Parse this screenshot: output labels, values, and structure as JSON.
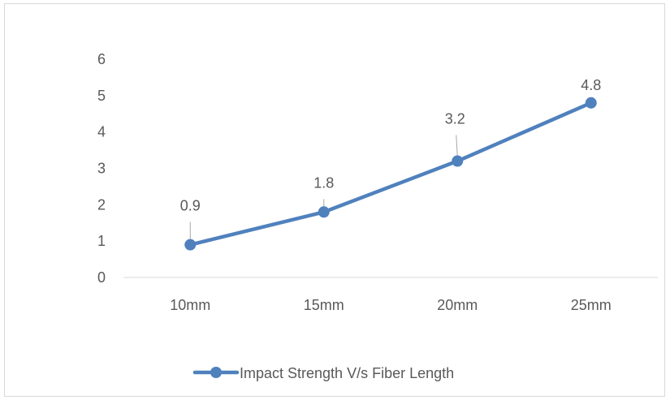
{
  "chart_data": {
    "type": "line",
    "title": "",
    "xlabel": "",
    "ylabel": "",
    "categories": [
      "10mm",
      "15mm",
      "20mm",
      "25mm"
    ],
    "series": [
      {
        "name": "Impact Strength V/s Fiber Length",
        "values": [
          0.9,
          1.8,
          3.2,
          4.8
        ],
        "data_labels": [
          "0.9",
          "1.8",
          "3.2",
          "4.8"
        ],
        "color": "#4f81bd"
      }
    ],
    "ylim": [
      0,
      6
    ],
    "yticks": [
      "0",
      "1",
      "2",
      "3",
      "4",
      "5",
      "6"
    ],
    "grid": false,
    "legend": "bottom"
  }
}
